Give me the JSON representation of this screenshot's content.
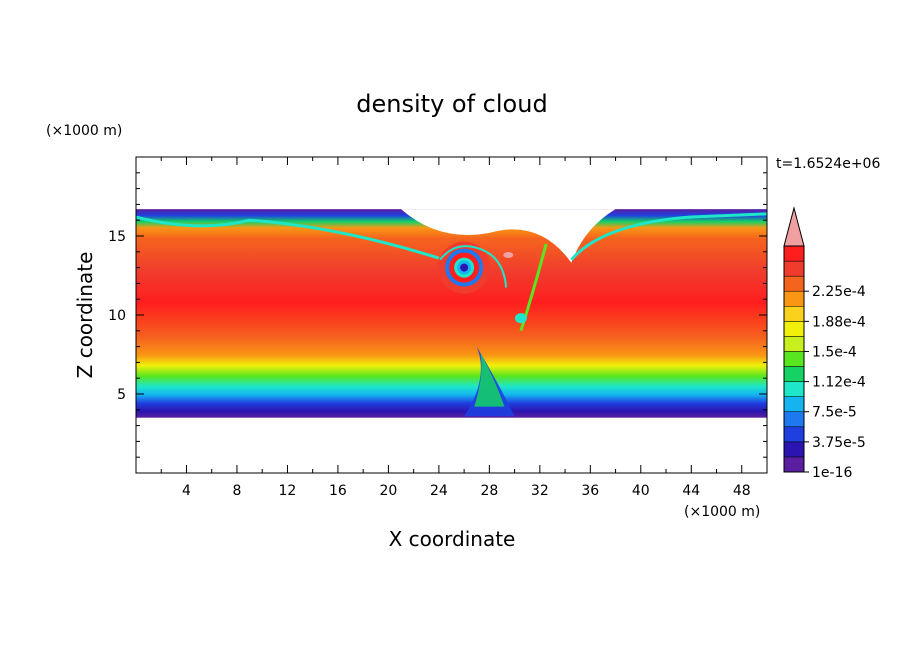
{
  "chart_data": {
    "type": "heatmap",
    "title": "density of cloud",
    "xlabel": "X coordinate",
    "ylabel": "Z coordinate",
    "x_unit": "(×1000 m)",
    "y_unit": "(×1000 m)",
    "time_label": "t=1.6524e+06",
    "xlim": [
      0,
      50
    ],
    "ylim": [
      0,
      20
    ],
    "x_ticks": [
      4,
      8,
      12,
      16,
      20,
      24,
      28,
      32,
      36,
      40,
      44,
      48
    ],
    "y_ticks": [
      5,
      10,
      15
    ],
    "colorbar": {
      "tick_labels": [
        "2.25e-4",
        "1.88e-4",
        "1.5e-4",
        "1.12e-4",
        "7.5e-5",
        "3.75e-5",
        "1e-16"
      ],
      "colors": [
        "#5a1fa0",
        "#2b14b0",
        "#1f3fe0",
        "#1e78f0",
        "#14b4f0",
        "#1ee6c8",
        "#14d264",
        "#5ae61e",
        "#c8f01e",
        "#f0f00a",
        "#fad21e",
        "#fa9614",
        "#f5641e",
        "#f03c2d",
        "#ff1e1e",
        "#f0a0a0"
      ],
      "extend": "max"
    },
    "cloud_layer": {
      "base_km": 3.5,
      "top_km": 16.7,
      "core_range_km": [
        7.5,
        14.5
      ],
      "vortex_center_km": [
        26,
        13
      ]
    }
  }
}
